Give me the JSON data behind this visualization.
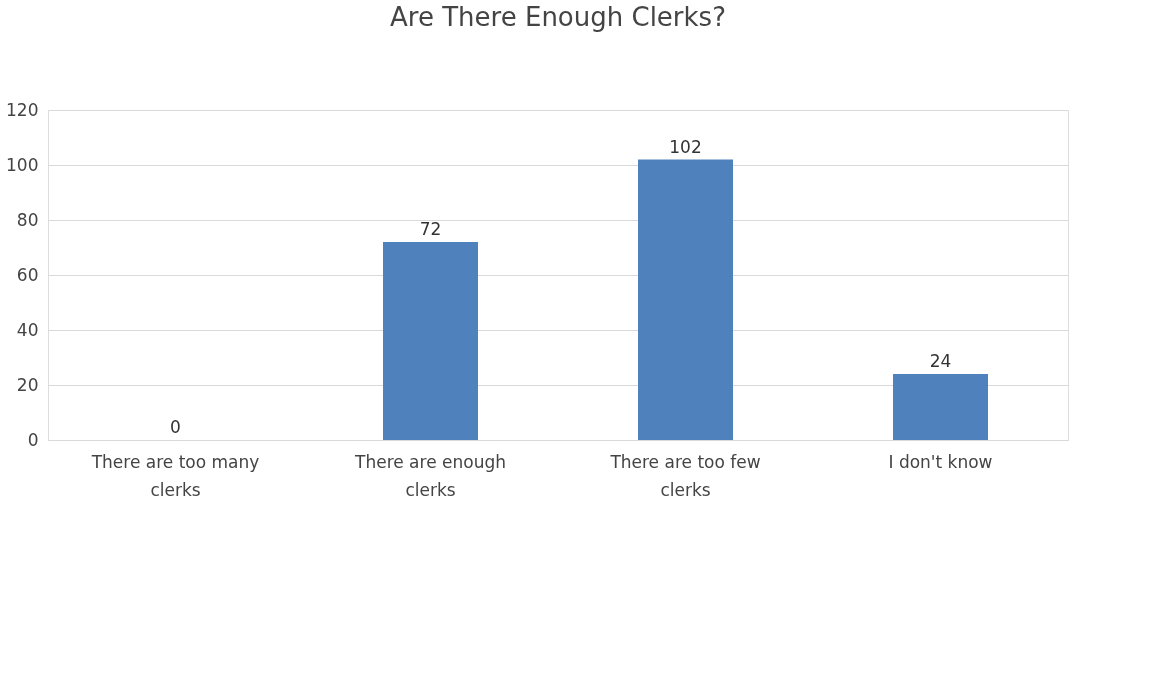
{
  "chart_data": {
    "type": "bar",
    "title": "Are There Enough Clerks?",
    "categories": [
      "There are too many clerks",
      "There are enough clerks",
      "There are too few clerks",
      "I don't know"
    ],
    "values": [
      0,
      72,
      102,
      24
    ],
    "color": "#4f81bd",
    "ylim": [
      0,
      120
    ],
    "yticks": [
      0,
      20,
      40,
      60,
      80,
      100,
      120
    ],
    "grid": "y",
    "data_labels": true
  }
}
